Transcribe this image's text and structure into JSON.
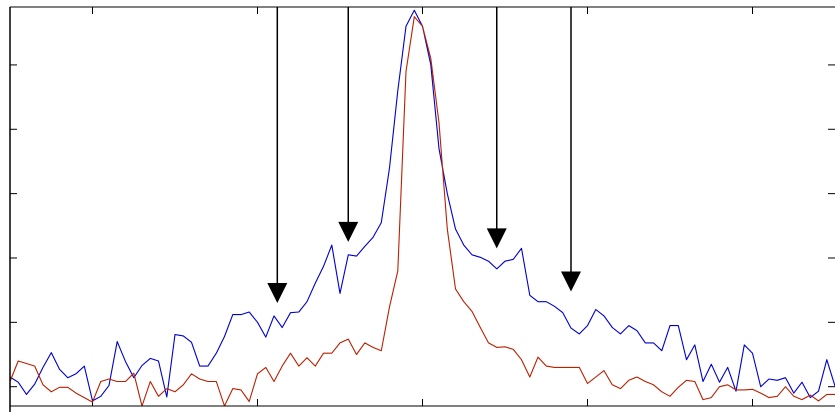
{
  "chart_data": {
    "type": "line",
    "title": "",
    "xlabel": "",
    "ylabel": "",
    "grid": false,
    "legend": "none",
    "xlim": [
      -2.5,
      2.5
    ],
    "ylim": [
      0,
      6.2
    ],
    "x_ticks": [
      -2,
      -1,
      0,
      1,
      2
    ],
    "y_ticks": [
      0.3,
      1.3,
      2.3,
      3.3,
      4.3,
      5.3
    ],
    "series": [
      {
        "color": "#0000cc",
        "values": [
          [
            -2.5,
            0.45
          ],
          [
            -2.45,
            0.37
          ],
          [
            -2.4,
            0.18
          ],
          [
            -2.35,
            0.34
          ],
          [
            -2.3,
            0.6
          ],
          [
            -2.25,
            0.83
          ],
          [
            -2.2,
            0.57
          ],
          [
            -2.15,
            0.44
          ],
          [
            -2.1,
            0.5
          ],
          [
            -2.05,
            0.62
          ],
          [
            -2.0,
            0.08
          ],
          [
            -1.95,
            0.15
          ],
          [
            -1.9,
            0.32
          ],
          [
            -1.85,
            1.0
          ],
          [
            -1.8,
            0.69
          ],
          [
            -1.75,
            0.44
          ],
          [
            -1.7,
            0.63
          ],
          [
            -1.65,
            0.74
          ],
          [
            -1.6,
            0.7
          ],
          [
            -1.55,
            0.14
          ],
          [
            -1.5,
            1.11
          ],
          [
            -1.45,
            1.09
          ],
          [
            -1.4,
            0.99
          ],
          [
            -1.35,
            0.62
          ],
          [
            -1.3,
            0.62
          ],
          [
            -1.25,
            0.82
          ],
          [
            -1.2,
            1.08
          ],
          [
            -1.15,
            1.42
          ],
          [
            -1.1,
            1.42
          ],
          [
            -1.05,
            1.46
          ],
          [
            -1.0,
            1.3
          ],
          [
            -0.95,
            1.07
          ],
          [
            -0.9,
            1.4
          ],
          [
            -0.85,
            1.22
          ],
          [
            -0.8,
            1.45
          ],
          [
            -0.75,
            1.46
          ],
          [
            -0.7,
            1.62
          ],
          [
            -0.65,
            1.91
          ],
          [
            -0.6,
            2.17
          ],
          [
            -0.55,
            2.5
          ],
          [
            -0.5,
            1.75
          ],
          [
            -0.45,
            2.35
          ],
          [
            -0.4,
            2.33
          ],
          [
            -0.35,
            2.48
          ],
          [
            -0.3,
            2.62
          ],
          [
            -0.25,
            2.85
          ],
          [
            -0.2,
            3.7
          ],
          [
            -0.15,
            4.9
          ],
          [
            -0.1,
            5.9
          ],
          [
            -0.05,
            6.15
          ],
          [
            0.0,
            5.9
          ],
          [
            0.05,
            5.3
          ],
          [
            0.1,
            4.0
          ],
          [
            0.15,
            3.3
          ],
          [
            0.2,
            2.75
          ],
          [
            0.25,
            2.5
          ],
          [
            0.3,
            2.35
          ],
          [
            0.35,
            2.31
          ],
          [
            0.4,
            2.25
          ],
          [
            0.45,
            2.13
          ],
          [
            0.5,
            2.25
          ],
          [
            0.55,
            2.28
          ],
          [
            0.6,
            2.45
          ],
          [
            0.65,
            1.72
          ],
          [
            0.7,
            1.62
          ],
          [
            0.75,
            1.62
          ],
          [
            0.8,
            1.55
          ],
          [
            0.85,
            1.45
          ],
          [
            0.9,
            1.21
          ],
          [
            0.95,
            1.12
          ],
          [
            1.0,
            1.25
          ],
          [
            1.05,
            1.5
          ],
          [
            1.1,
            1.4
          ],
          [
            1.15,
            1.22
          ],
          [
            1.2,
            1.12
          ],
          [
            1.25,
            1.25
          ],
          [
            1.3,
            1.17
          ],
          [
            1.35,
            0.98
          ],
          [
            1.4,
            0.98
          ],
          [
            1.45,
            0.86
          ],
          [
            1.5,
            1.25
          ],
          [
            1.55,
            1.25
          ],
          [
            1.6,
            0.72
          ],
          [
            1.65,
            0.95
          ],
          [
            1.7,
            0.38
          ],
          [
            1.75,
            0.65
          ],
          [
            1.8,
            0.37
          ],
          [
            1.85,
            0.6
          ],
          [
            1.9,
            0.23
          ],
          [
            1.95,
            0.95
          ],
          [
            2.0,
            0.82
          ],
          [
            2.05,
            0.3
          ],
          [
            2.1,
            0.42
          ],
          [
            2.15,
            0.4
          ],
          [
            2.2,
            0.44
          ],
          [
            2.25,
            0.2
          ],
          [
            2.3,
            0.37
          ],
          [
            2.35,
            0.13
          ],
          [
            2.4,
            0.23
          ],
          [
            2.45,
            0.72
          ],
          [
            2.5,
            0.31
          ]
        ]
      },
      {
        "color": "#b82000",
        "values": [
          [
            -2.5,
            0.38
          ],
          [
            -2.45,
            0.7
          ],
          [
            -2.4,
            0.66
          ],
          [
            -2.35,
            0.62
          ],
          [
            -2.3,
            0.33
          ],
          [
            -2.25,
            0.22
          ],
          [
            -2.2,
            0.29
          ],
          [
            -2.15,
            0.29
          ],
          [
            -2.1,
            0.2
          ],
          [
            -2.05,
            0.13
          ],
          [
            -2.0,
            0.06
          ],
          [
            -1.95,
            0.38
          ],
          [
            -1.9,
            0.42
          ],
          [
            -1.85,
            0.38
          ],
          [
            -1.8,
            0.38
          ],
          [
            -1.75,
            0.51
          ],
          [
            -1.7,
            0.0
          ],
          [
            -1.65,
            0.38
          ],
          [
            -1.6,
            0.15
          ],
          [
            -1.55,
            0.27
          ],
          [
            -1.5,
            0.22
          ],
          [
            -1.45,
            0.33
          ],
          [
            -1.4,
            0.5
          ],
          [
            -1.35,
            0.42
          ],
          [
            -1.3,
            0.38
          ],
          [
            -1.25,
            0.38
          ],
          [
            -1.2,
            0.0
          ],
          [
            -1.15,
            0.27
          ],
          [
            -1.1,
            0.25
          ],
          [
            -1.05,
            0.07
          ],
          [
            -1.0,
            0.5
          ],
          [
            -0.95,
            0.6
          ],
          [
            -0.9,
            0.38
          ],
          [
            -0.85,
            0.62
          ],
          [
            -0.8,
            0.82
          ],
          [
            -0.75,
            0.62
          ],
          [
            -0.7,
            0.75
          ],
          [
            -0.65,
            0.62
          ],
          [
            -0.6,
            0.82
          ],
          [
            -0.55,
            0.82
          ],
          [
            -0.5,
            0.98
          ],
          [
            -0.45,
            1.04
          ],
          [
            -0.4,
            0.8
          ],
          [
            -0.35,
            0.98
          ],
          [
            -0.3,
            0.91
          ],
          [
            -0.25,
            0.86
          ],
          [
            -0.2,
            1.54
          ],
          [
            -0.15,
            2.1
          ],
          [
            -0.1,
            5.2
          ],
          [
            -0.05,
            6.05
          ],
          [
            0.0,
            5.9
          ],
          [
            0.05,
            5.4
          ],
          [
            0.1,
            4.4
          ],
          [
            0.15,
            2.75
          ],
          [
            0.2,
            1.82
          ],
          [
            0.25,
            1.62
          ],
          [
            0.3,
            1.47
          ],
          [
            0.35,
            1.22
          ],
          [
            0.4,
            0.98
          ],
          [
            0.45,
            0.91
          ],
          [
            0.5,
            0.92
          ],
          [
            0.55,
            0.88
          ],
          [
            0.6,
            0.72
          ],
          [
            0.65,
            0.45
          ],
          [
            0.7,
            0.76
          ],
          [
            0.75,
            0.62
          ],
          [
            0.8,
            0.6
          ],
          [
            0.85,
            0.6
          ],
          [
            0.9,
            0.6
          ],
          [
            0.95,
            0.6
          ],
          [
            1.0,
            0.35
          ],
          [
            1.05,
            0.45
          ],
          [
            1.1,
            0.55
          ],
          [
            1.15,
            0.33
          ],
          [
            1.2,
            0.27
          ],
          [
            1.25,
            0.4
          ],
          [
            1.3,
            0.45
          ],
          [
            1.35,
            0.38
          ],
          [
            1.4,
            0.33
          ],
          [
            1.45,
            0.22
          ],
          [
            1.5,
            0.15
          ],
          [
            1.55,
            0.29
          ],
          [
            1.6,
            0.4
          ],
          [
            1.65,
            0.38
          ],
          [
            1.7,
            0.1
          ],
          [
            1.75,
            0.13
          ],
          [
            1.8,
            0.3
          ],
          [
            1.85,
            0.33
          ],
          [
            1.9,
            0.25
          ],
          [
            1.95,
            0.25
          ],
          [
            2.0,
            0.26
          ],
          [
            2.05,
            0.2
          ],
          [
            2.1,
            0.13
          ],
          [
            2.15,
            0.15
          ],
          [
            2.2,
            0.3
          ],
          [
            2.25,
            0.15
          ],
          [
            2.3,
            0.1
          ],
          [
            2.35,
            0.17
          ],
          [
            2.4,
            0.08
          ],
          [
            2.45,
            0.18
          ],
          [
            2.5,
            0.18
          ]
        ]
      }
    ],
    "annotations": [
      {
        "type": "arrow",
        "x": -0.88,
        "y_from": 6.2,
        "y_to": 1.6
      },
      {
        "type": "arrow",
        "x": -0.45,
        "y_from": 6.2,
        "y_to": 2.55
      },
      {
        "type": "arrow",
        "x": 0.45,
        "y_from": 6.2,
        "y_to": 2.45
      },
      {
        "type": "arrow",
        "x": 0.9,
        "y_from": 6.2,
        "y_to": 1.78
      }
    ]
  }
}
